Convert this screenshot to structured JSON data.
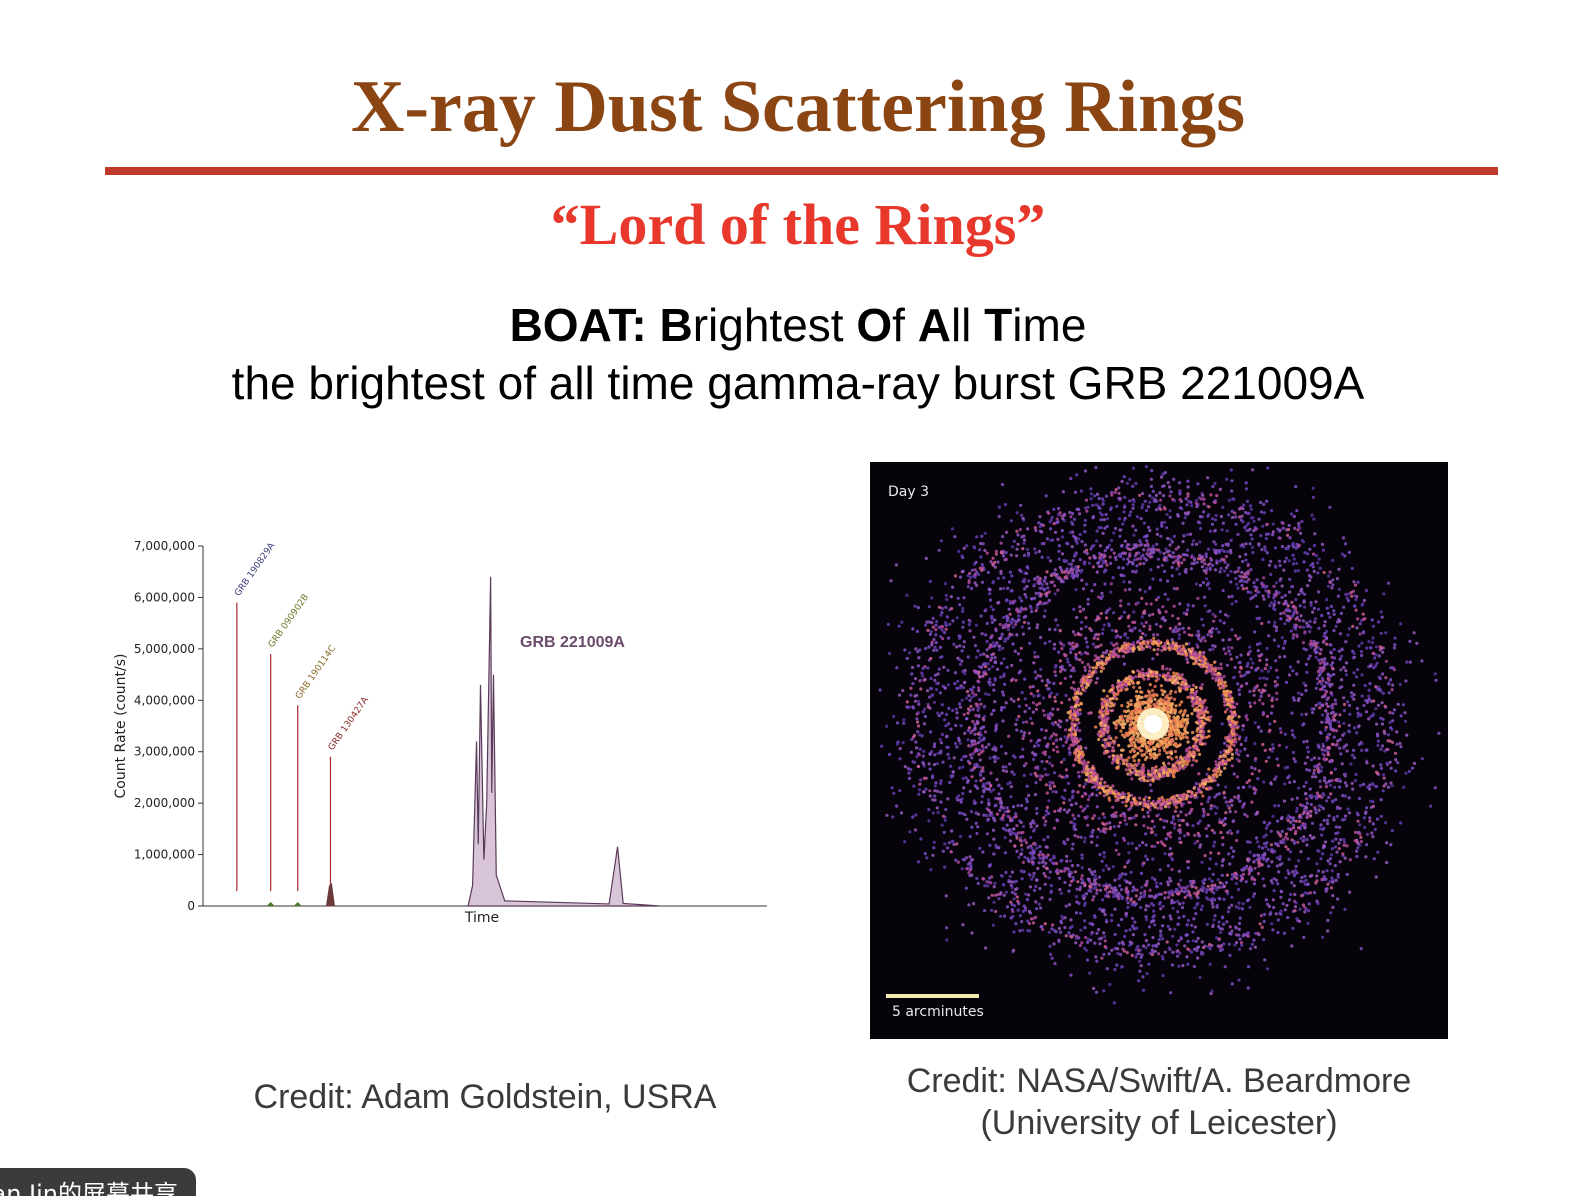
{
  "slide": {
    "title": "X-ray Dust Scattering Rings",
    "subtitle": "“Lord of the Rings”",
    "boat_line": [
      {
        "text": "BOAT:",
        "bold": true
      },
      {
        "text": " ",
        "bold": false
      },
      {
        "text": "B",
        "bold": true
      },
      {
        "text": "rightest ",
        "bold": false
      },
      {
        "text": "O",
        "bold": true
      },
      {
        "text": "f ",
        "bold": false
      },
      {
        "text": "A",
        "bold": true
      },
      {
        "text": "ll ",
        "bold": false
      },
      {
        "text": "T",
        "bold": true
      },
      {
        "text": "ime",
        "bold": false
      }
    ],
    "description": "the brightest of all time gamma-ray burst GRB 221009A",
    "credit_left": "Credit: Adam Goldstein, USRA",
    "credit_right_line1": "Credit: NASA/Swift/A. Beardmore",
    "credit_right_line2": "(University of Leicester)"
  },
  "image": {
    "day_label": "Day 3",
    "scale_label": "5 arcminutes"
  },
  "screen_share": {
    "label": "an Jin的屏幕共享"
  },
  "colors": {
    "title": "#8b4513",
    "rule": "#c0392b",
    "subtitle": "#e8382c",
    "grb_line": "#a52a2a",
    "grb221009a": "#6b4a6b"
  },
  "chart_data": {
    "type": "line",
    "title": "",
    "xlabel": "Time",
    "ylabel": "Count Rate (count/s)",
    "ylim": [
      0,
      7000000
    ],
    "yticks": [
      "0",
      "1,000,000",
      "2,000,000",
      "3,000,000",
      "4,000,000",
      "5,000,000",
      "6,000,000",
      "7,000,000"
    ],
    "grid": false,
    "annotations": [
      {
        "name": "GRB 190829A",
        "peak": 5900000,
        "color": "#3b3b7a"
      },
      {
        "name": "GRB 090902B",
        "peak": 4900000,
        "color": "#6b7a2a"
      },
      {
        "name": "GRB 190114C",
        "peak": 3900000,
        "color": "#8a6a2a"
      },
      {
        "name": "GRB 130427A",
        "peak": 2900000,
        "color": "#8a2a2a"
      }
    ],
    "main_label": "GRB 221009A",
    "main_series_peaks": [
      {
        "t": 0.485,
        "v": 3200000
      },
      {
        "t": 0.492,
        "v": 4300000
      },
      {
        "t": 0.51,
        "v": 6400000
      },
      {
        "t": 0.515,
        "v": 4500000
      },
      {
        "t": 0.735,
        "v": 1150000
      }
    ]
  }
}
